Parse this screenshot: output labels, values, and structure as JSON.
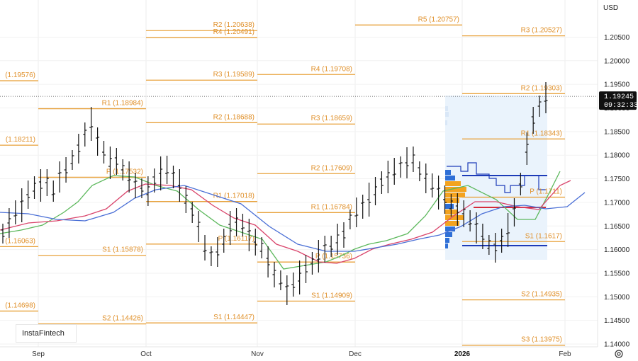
{
  "currency": "USD",
  "watermark": "InstaFintech",
  "current_price": {
    "value": "1.19245",
    "time": "09:32:33",
    "price": 1.19245
  },
  "icons": {
    "settings": "gear-icon"
  },
  "colors": {
    "level": "#e8a23c",
    "candle": "#111111",
    "ma_green": "#5cb85c",
    "ma_red": "#d9446b",
    "ma_blue": "#4a6fd6",
    "vp_blue": "#2f6fd6",
    "vp_orange": "#f3a320",
    "vp_box": "#eaf3fc",
    "price_line": "#1d3bb8",
    "poc_red": "#d52b3a"
  },
  "chart_data": {
    "type": "ohlc",
    "instrument_currency": "USD",
    "y_ticks": [
      "1.20500",
      "1.20000",
      "1.19500",
      "1.19000",
      "1.18500",
      "1.18000",
      "1.17500",
      "1.17000",
      "1.16500",
      "1.16000",
      "1.15500",
      "1.15000",
      "1.14500",
      "1.14000"
    ],
    "x_ticks": [
      "Sep",
      "Oct",
      "Nov",
      "Dec",
      "2026",
      "Feb"
    ],
    "levels": [
      {
        "label": "R2 (1.20638)",
        "value": 1.20638
      },
      {
        "label": "R4 (1.20491)",
        "value": 1.20491
      },
      {
        "label": "R5 (1.20757)",
        "value": 1.20757
      },
      {
        "label": "R3 (1.20527)",
        "value": 1.20527
      },
      {
        "label": "(1.19576)",
        "value": 1.19576
      },
      {
        "label": "R3 (1.19589)",
        "value": 1.19589
      },
      {
        "label": "R4 (1.19708)",
        "value": 1.19708
      },
      {
        "label": "R2 (1.19303)",
        "value": 1.19303
      },
      {
        "label": "R1 (1.18984)",
        "value": 1.18984
      },
      {
        "label": "R2 (1.18688)",
        "value": 1.18688
      },
      {
        "label": "R3 (1.18659)",
        "value": 1.18659
      },
      {
        "label": "R1 (1.18343)",
        "value": 1.18343
      },
      {
        "label": "(1.18211)",
        "value": 1.18211
      },
      {
        "label": "R2 (1.17609)",
        "value": 1.17609
      },
      {
        "label": "P (1.17532)",
        "value": 1.17532
      },
      {
        "label": "P (1.1711)",
        "value": 1.1711
      },
      {
        "label": "R1 (1.17018)",
        "value": 1.17018
      },
      {
        "label": "R1 (1.16784)",
        "value": 1.16784
      },
      {
        "label": "P (1.16117)",
        "value": 1.16117
      },
      {
        "label": "S1 (1.1617)",
        "value": 1.1617
      },
      {
        "label": "(1.16063)",
        "value": 1.16063
      },
      {
        "label": "S1 (1.15878)",
        "value": 1.15878
      },
      {
        "label": "P (1.15736)",
        "value": 1.15736
      },
      {
        "label": "S1 (1.14909)",
        "value": 1.14909
      },
      {
        "label": "S2 (1.14935)",
        "value": 1.14935
      },
      {
        "label": "(1.14698)",
        "value": 1.14698
      },
      {
        "label": "S2 (1.14426)",
        "value": 1.14426
      },
      {
        "label": "S1 (1.14447)",
        "value": 1.14447
      },
      {
        "label": "S3 (1.13975)",
        "value": 1.13975
      }
    ],
    "y_range": [
      1.1398,
      1.2105
    ],
    "grid": true
  }
}
